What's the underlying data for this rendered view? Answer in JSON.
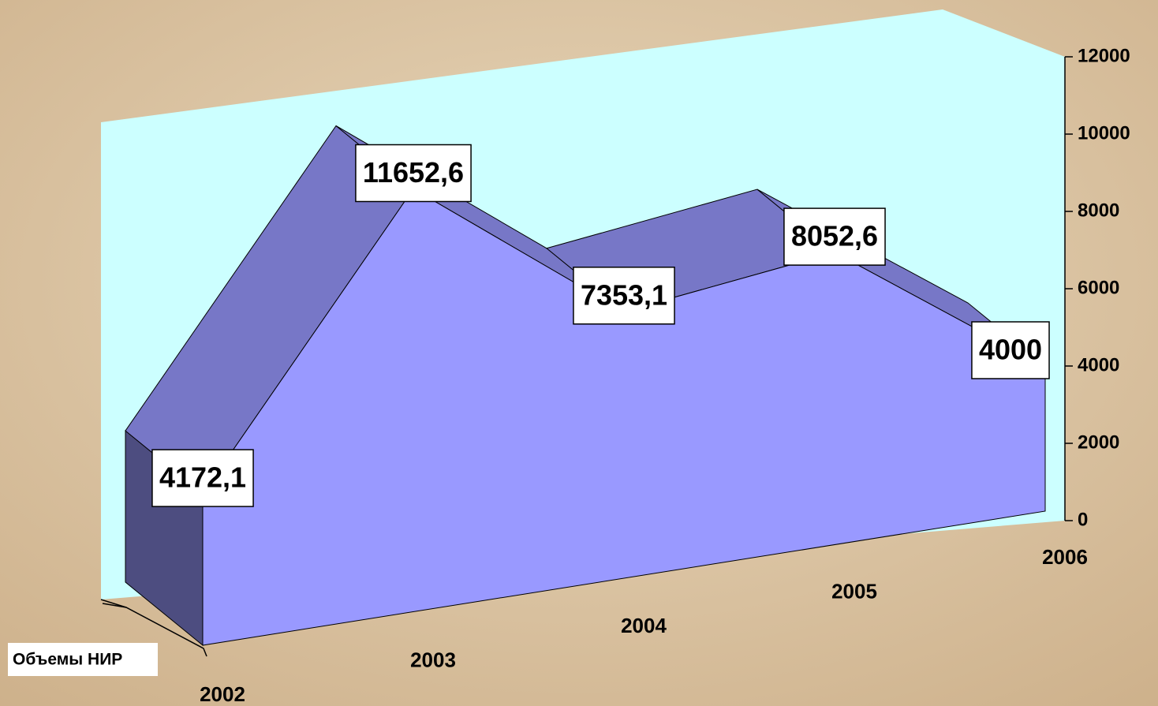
{
  "chart_data": {
    "type": "area3d",
    "categories": [
      "2002",
      "2003",
      "2004",
      "2005",
      "2006"
    ],
    "series": [
      {
        "name": "Объемы НИР",
        "color": "#9999ff",
        "values": [
          4172.1,
          11652.6,
          7353.1,
          8052.6,
          4000
        ],
        "value_labels": [
          "4172,1",
          "11652,6",
          "7353,1",
          "8052,6",
          "4000"
        ]
      }
    ],
    "ylim": [
      0,
      12000
    ],
    "yticks": [
      0,
      2000,
      4000,
      6000,
      8000,
      10000,
      12000
    ]
  }
}
